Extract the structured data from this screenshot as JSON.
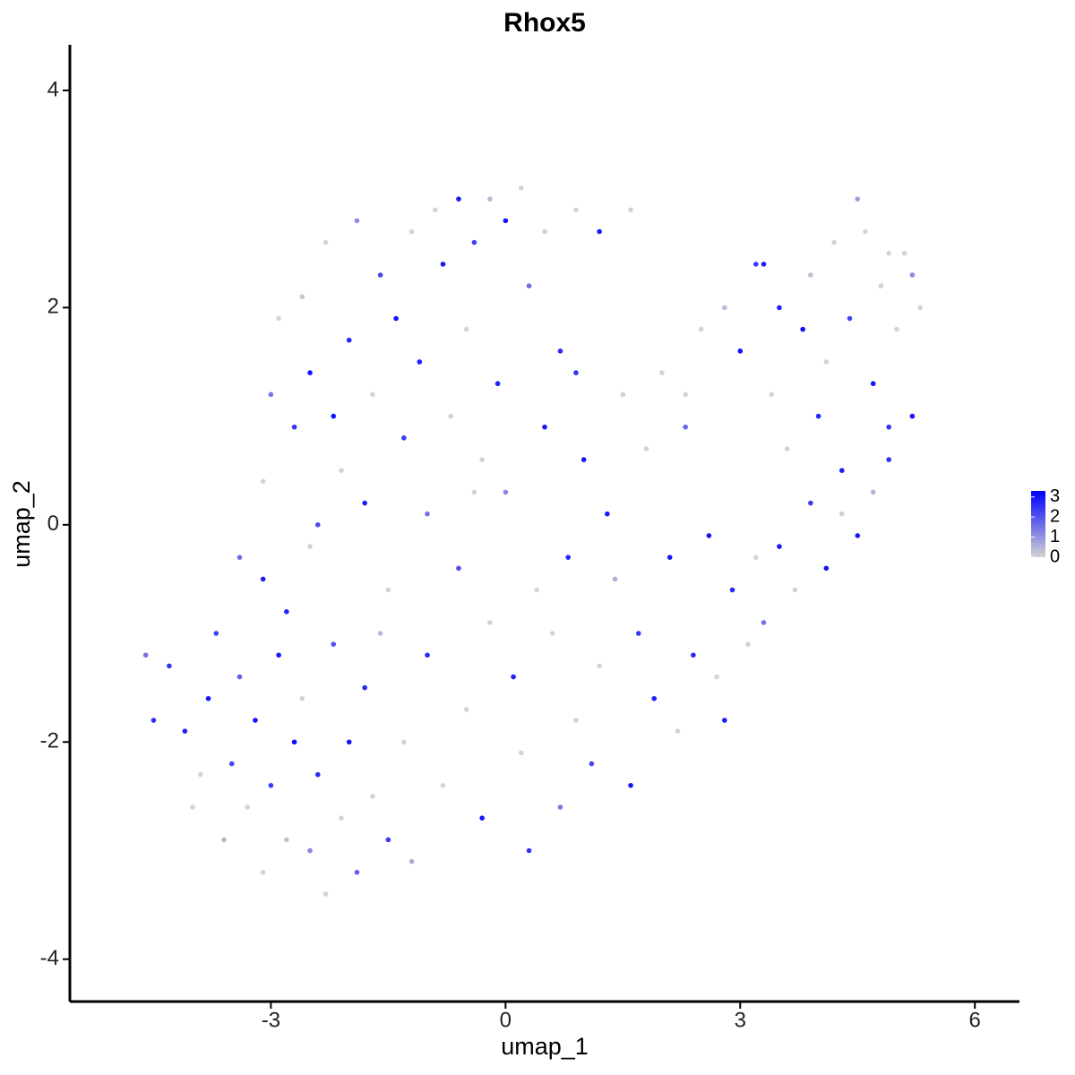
{
  "chart_data": {
    "type": "scatter",
    "title": "Rhox5",
    "x_label": "umap_1",
    "y_label": "umap_2",
    "xlim": [
      -5.57,
      6.57
    ],
    "ylim": [
      -4.39,
      4.42
    ],
    "xticks": [
      -3,
      0,
      3,
      6
    ],
    "yticks": [
      -4,
      -2,
      0,
      2,
      4
    ],
    "color_low": "#d3d3d3",
    "color_high": "#0000ff",
    "colorbar_lim": [
      0,
      3.3
    ],
    "colorbar_ticks": [
      0,
      1,
      2,
      3
    ],
    "x": [
      -4.3,
      -4.1,
      -3.9,
      -3.8,
      -3.6,
      -3.5,
      -3.4,
      -3.3,
      -3.2,
      -3.1,
      -3.0,
      -2.9,
      -2.8,
      -2.7,
      -2.6,
      -2.5,
      -2.4,
      -2.3,
      -2.2,
      -2.1,
      -2.0,
      -1.9,
      -1.8,
      -1.7,
      -1.6,
      -4.6,
      -4.5,
      -4.0,
      -3.7,
      -3.1,
      -2.5,
      -1.5,
      -1.3,
      -1.2,
      -3.4,
      -3.1,
      -3.0,
      -2.9,
      -2.8,
      -2.7,
      -2.6,
      -2.5,
      -2.4,
      -2.3,
      -2.2,
      -2.1,
      -2.0,
      -1.9,
      -1.8,
      -1.7,
      -1.6,
      -1.5,
      -1.4,
      -1.3,
      -1.2,
      -1.1,
      -1.0,
      -0.9,
      -0.8,
      -0.7,
      -0.6,
      -0.5,
      -0.4,
      -0.3,
      -0.2,
      -0.1,
      0.0,
      0.2,
      0.3,
      0.5,
      0.7,
      0.9,
      1.2,
      1.6,
      -1.0,
      -0.8,
      -0.6,
      -0.5,
      -0.3,
      -0.2,
      0.0,
      0.1,
      0.2,
      0.3,
      0.4,
      0.5,
      0.6,
      0.7,
      0.8,
      0.9,
      1.0,
      1.1,
      1.2,
      1.3,
      1.4,
      1.5,
      1.6,
      1.7,
      1.8,
      1.9,
      2.0,
      2.1,
      2.2,
      2.3,
      2.4,
      2.5,
      2.6,
      -0.4,
      0.9,
      2.7,
      2.9,
      3.1,
      3.3,
      3.5,
      3.7,
      3.9,
      4.1,
      4.3,
      4.5,
      4.7,
      4.9,
      2.8,
      3.2,
      3.0,
      3.2,
      3.4,
      3.5,
      3.6,
      3.8,
      3.9,
      4.0,
      4.1,
      4.2,
      4.3,
      4.4,
      4.5,
      4.6,
      4.7,
      4.8,
      4.9,
      5.0,
      5.1,
      5.2,
      5.3,
      5.2,
      4.9,
      3.3,
      2.8,
      2.3
    ],
    "y": [
      -1.3,
      -1.9,
      -2.3,
      -1.6,
      -2.9,
      -2.2,
      -1.4,
      -2.6,
      -1.8,
      -3.2,
      -2.4,
      -1.2,
      -2.9,
      -2.0,
      -1.6,
      -3.0,
      -2.3,
      -3.4,
      -1.1,
      -2.7,
      -2.0,
      -3.2,
      -1.5,
      -2.5,
      -1.0,
      -1.2,
      -1.8,
      -2.6,
      -1.0,
      -0.5,
      -0.2,
      -2.9,
      -2.0,
      -3.1,
      -0.3,
      0.4,
      1.2,
      1.9,
      -0.8,
      0.9,
      2.1,
      1.4,
      0.0,
      2.6,
      1.0,
      0.5,
      1.7,
      2.8,
      0.2,
      1.2,
      2.3,
      -0.6,
      1.9,
      0.8,
      2.7,
      1.5,
      0.1,
      2.9,
      2.4,
      1.0,
      3.0,
      1.8,
      2.6,
      0.6,
      3.0,
      1.3,
      2.8,
      3.1,
      2.2,
      2.7,
      1.6,
      2.9,
      2.7,
      2.9,
      -1.2,
      -2.4,
      -0.4,
      -1.7,
      -2.7,
      -0.9,
      0.3,
      -1.4,
      -2.1,
      -3.0,
      -0.6,
      0.9,
      -1.0,
      -2.6,
      -0.3,
      -1.8,
      0.6,
      -2.2,
      -1.3,
      0.1,
      -0.5,
      1.2,
      -2.4,
      -1.0,
      0.7,
      -1.6,
      1.4,
      -0.3,
      -1.9,
      0.9,
      -1.2,
      1.8,
      -0.1,
      0.3,
      1.4,
      -1.4,
      -0.6,
      -1.1,
      -0.9,
      -0.2,
      -0.6,
      0.2,
      -0.4,
      0.1,
      -0.1,
      0.3,
      0.6,
      -1.8,
      -0.3,
      1.6,
      2.4,
      1.2,
      2.0,
      0.7,
      1.8,
      2.3,
      1.0,
      1.5,
      2.6,
      0.5,
      1.9,
      3.0,
      2.7,
      1.3,
      2.2,
      0.9,
      1.8,
      2.5,
      1.0,
      2.0,
      2.3,
      2.5,
      2.4,
      2.0,
      1.2
    ],
    "values": [
      2.5,
      2.8,
      0,
      3,
      0.5,
      2.2,
      1.8,
      0,
      3,
      0,
      2.4,
      2.9,
      0.3,
      3.1,
      0,
      1.2,
      2.6,
      0,
      2,
      0,
      3,
      1.8,
      2.7,
      0,
      0.4,
      1.5,
      2.6,
      0,
      2.3,
      2.9,
      0,
      2.4,
      0,
      0.6,
      1.6,
      0,
      1.4,
      0,
      2.8,
      2.5,
      0.2,
      3,
      2.1,
      0,
      3,
      0,
      2.7,
      1.1,
      2.9,
      0,
      2.2,
      0,
      3,
      2.4,
      0,
      2.8,
      1.5,
      0,
      3,
      0,
      2.9,
      0,
      2.3,
      0,
      0.4,
      2.8,
      3,
      0,
      1.6,
      0,
      2.6,
      0,
      2.9,
      0,
      2.6,
      0,
      2.1,
      0,
      3,
      0,
      1.2,
      2.8,
      0,
      2.5,
      0,
      2.9,
      0,
      1.4,
      2.7,
      0,
      3,
      2.2,
      0,
      2.9,
      0.6,
      0,
      3,
      2.4,
      0,
      2.8,
      0,
      3,
      0,
      1.7,
      2.6,
      0,
      3,
      0,
      2.5,
      0,
      2.7,
      0,
      1.5,
      2.9,
      0,
      2.4,
      3,
      0,
      2.9,
      0.5,
      2.6,
      2.9,
      0,
      3,
      2.4,
      0,
      2.8,
      0,
      3,
      0.3,
      2.7,
      0,
      0,
      2.9,
      2.2,
      0.8,
      0,
      3,
      0,
      2.5,
      0,
      0,
      3,
      0,
      1.1,
      0,
      2.9,
      0.4,
      0
    ]
  }
}
